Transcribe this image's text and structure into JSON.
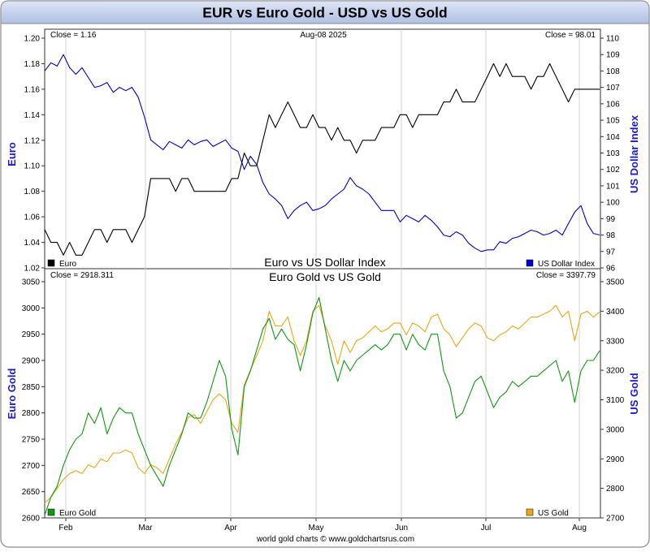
{
  "title": "EUR vs Euro Gold - USD vs US Gold",
  "footer": "world gold charts © www.goldchartsrus.com",
  "x_axis": {
    "tick_labels": [
      "Feb",
      "Mar",
      "Apr",
      "May",
      "Jun",
      "Jul",
      "Aug"
    ]
  },
  "colors": {
    "title_bg_top": "#dfe6f5",
    "title_bg_bottom": "#aebfe3",
    "euro": "#000000",
    "usd_index": "#0000cc",
    "euro_gold": "#119911",
    "us_gold": "#e8a818",
    "axis_label": "#1a1acc"
  },
  "chart_data": [
    {
      "type": "line",
      "title": "Euro vs US Dollar Index",
      "date_label": "Aug-08  2025",
      "close_left": "Close = 1.16",
      "close_right": "Close = 98.01",
      "left_axis": {
        "label": "Euro",
        "ticks": [
          "1.20",
          "1.18",
          "1.16",
          "1.14",
          "1.12",
          "1.10",
          "1.08",
          "1.06",
          "1.04",
          "1.02"
        ],
        "ylim": [
          1.02,
          1.2
        ]
      },
      "right_axis": {
        "label": "US Dollar Index",
        "ticks": [
          "110",
          "109",
          "108",
          "107",
          "106",
          "105",
          "104",
          "103",
          "102",
          "101",
          "100",
          "99",
          "98",
          "97",
          "96"
        ],
        "ylim": [
          96,
          110
        ]
      },
      "series": [
        {
          "name": "Euro",
          "axis": "left",
          "values": [
            1.05,
            1.04,
            1.04,
            1.03,
            1.04,
            1.03,
            1.03,
            1.04,
            1.05,
            1.05,
            1.04,
            1.05,
            1.05,
            1.05,
            1.04,
            1.05,
            1.06,
            1.09,
            1.09,
            1.09,
            1.09,
            1.08,
            1.09,
            1.09,
            1.08,
            1.08,
            1.08,
            1.08,
            1.08,
            1.08,
            1.09,
            1.09,
            1.11,
            1.1,
            1.1,
            1.12,
            1.14,
            1.13,
            1.14,
            1.15,
            1.14,
            1.13,
            1.13,
            1.14,
            1.13,
            1.13,
            1.12,
            1.13,
            1.12,
            1.12,
            1.11,
            1.12,
            1.12,
            1.12,
            1.13,
            1.13,
            1.13,
            1.14,
            1.14,
            1.13,
            1.14,
            1.14,
            1.14,
            1.14,
            1.15,
            1.15,
            1.16,
            1.15,
            1.15,
            1.15,
            1.16,
            1.17,
            1.18,
            1.17,
            1.18,
            1.17,
            1.17,
            1.17,
            1.16,
            1.17,
            1.17,
            1.18,
            1.17,
            1.16,
            1.15,
            1.16,
            1.16,
            1.16,
            1.16,
            1.16
          ]
        },
        {
          "name": "US Dollar Index",
          "axis": "right",
          "values": [
            108.0,
            108.5,
            108.3,
            109.0,
            108.2,
            107.8,
            108.2,
            107.6,
            107.0,
            107.1,
            107.3,
            106.7,
            107.0,
            106.8,
            107.0,
            106.4,
            105.2,
            103.8,
            103.5,
            103.2,
            103.7,
            103.5,
            103.3,
            103.8,
            103.5,
            103.7,
            103.8,
            103.4,
            103.6,
            103.8,
            103.3,
            103.1,
            102.0,
            102.8,
            102.3,
            101.2,
            100.5,
            100.2,
            99.8,
            99.0,
            99.5,
            99.8,
            100.0,
            99.5,
            99.6,
            99.8,
            100.2,
            100.5,
            100.8,
            101.5,
            101.0,
            100.8,
            100.5,
            100.0,
            99.5,
            99.5,
            99.5,
            98.8,
            99.2,
            99.0,
            98.8,
            99.2,
            98.9,
            98.5,
            98.0,
            97.9,
            98.2,
            98.0,
            97.5,
            97.2,
            97.0,
            97.1,
            97.1,
            97.6,
            97.5,
            97.8,
            97.9,
            98.1,
            98.3,
            98.2,
            98.0,
            98.1,
            98.3,
            98.0,
            98.7,
            99.4,
            99.8,
            98.7,
            98.1,
            98.01
          ]
        }
      ]
    },
    {
      "type": "line",
      "title": "Euro Gold vs US Gold",
      "close_left": "Close = 2918.311",
      "close_right": "Close = 3397.79",
      "left_axis": {
        "label": "Euro Gold",
        "ticks": [
          "3050",
          "3000",
          "2950",
          "2900",
          "2850",
          "2800",
          "2750",
          "2700",
          "2650",
          "2600"
        ],
        "ylim": [
          2600,
          3050
        ]
      },
      "right_axis": {
        "label": "US Gold",
        "ticks": [
          "3500",
          "3400",
          "3300",
          "3200",
          "3100",
          "3000",
          "2900",
          "2800",
          "2700"
        ],
        "ylim": [
          2700,
          3500
        ]
      },
      "series": [
        {
          "name": "Euro Gold",
          "axis": "left",
          "values": [
            2605,
            2640,
            2660,
            2700,
            2730,
            2750,
            2760,
            2800,
            2780,
            2810,
            2760,
            2790,
            2810,
            2800,
            2800,
            2760,
            2730,
            2700,
            2680,
            2660,
            2700,
            2730,
            2760,
            2800,
            2790,
            2790,
            2820,
            2860,
            2900,
            2870,
            2770,
            2720,
            2850,
            2880,
            2920,
            2960,
            2980,
            2940,
            2960,
            2940,
            2930,
            2880,
            2930,
            2990,
            3020,
            2960,
            2900,
            2860,
            2900,
            2880,
            2900,
            2910,
            2920,
            2930,
            2920,
            2930,
            2950,
            2950,
            2920,
            2950,
            2930,
            2920,
            2950,
            2950,
            2880,
            2850,
            2790,
            2800,
            2830,
            2860,
            2870,
            2840,
            2810,
            2830,
            2840,
            2860,
            2850,
            2860,
            2870,
            2870,
            2880,
            2890,
            2900,
            2860,
            2880,
            2820,
            2880,
            2900,
            2900,
            2918.311
          ]
        },
        {
          "name": "US Gold",
          "axis": "right",
          "values": [
            2750,
            2770,
            2800,
            2830,
            2850,
            2860,
            2850,
            2880,
            2870,
            2900,
            2890,
            2920,
            2920,
            2930,
            2920,
            2870,
            2850,
            2880,
            2870,
            2850,
            2900,
            2950,
            2990,
            3040,
            3050,
            3020,
            3060,
            3100,
            3120,
            3100,
            3020,
            2990,
            3150,
            3200,
            3250,
            3300,
            3400,
            3350,
            3350,
            3380,
            3300,
            3250,
            3300,
            3400,
            3420,
            3350,
            3300,
            3220,
            3300,
            3260,
            3300,
            3310,
            3330,
            3350,
            3330,
            3340,
            3360,
            3360,
            3320,
            3360,
            3350,
            3330,
            3380,
            3390,
            3340,
            3320,
            3280,
            3310,
            3340,
            3360,
            3350,
            3310,
            3300,
            3320,
            3330,
            3350,
            3340,
            3360,
            3380,
            3380,
            3390,
            3400,
            3420,
            3380,
            3400,
            3300,
            3390,
            3400,
            3380,
            3397.79
          ]
        }
      ]
    }
  ]
}
